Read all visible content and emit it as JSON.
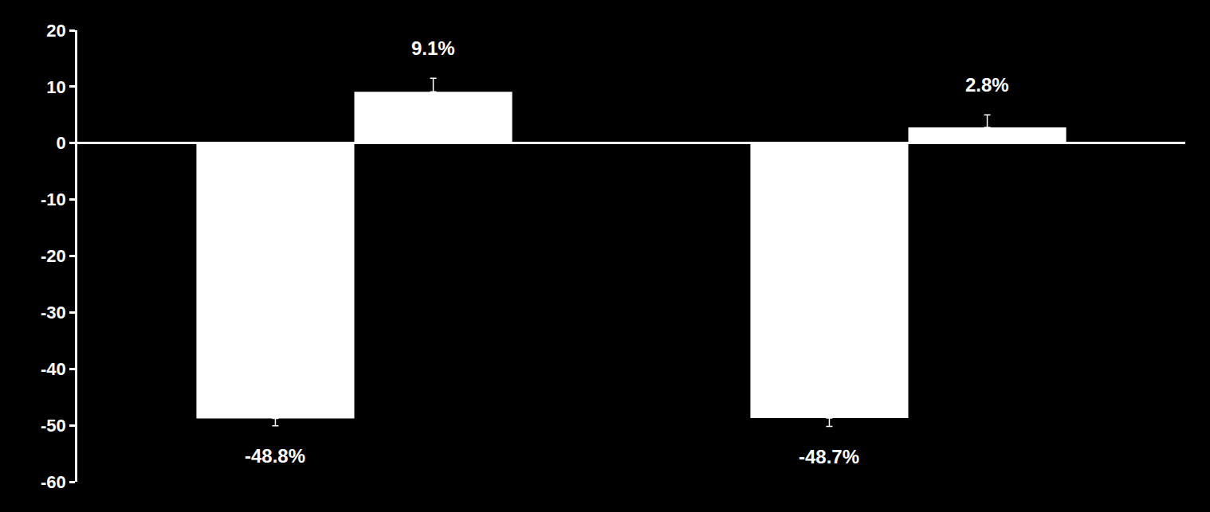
{
  "chart_data": {
    "type": "bar",
    "categories": [
      null,
      null
    ],
    "series": [
      {
        "color": "#ffffff",
        "values": [
          -48.8,
          -48.7
        ],
        "value_labels": [
          "-48.8%",
          "-48.7%"
        ],
        "errors": [
          1.3,
          1.5
        ]
      },
      {
        "color": "#ffffff",
        "values": [
          9.1,
          2.8
        ],
        "value_labels": [
          "9.1%",
          "2.8%"
        ],
        "errors": [
          2.4,
          2.2
        ]
      }
    ],
    "ylim": [
      -60,
      20
    ],
    "yticks": [
      -60,
      -50,
      -40,
      -30,
      -20,
      -10,
      0,
      10,
      20
    ],
    "grid": false,
    "data_labels": true,
    "tick_labels": "y"
  }
}
